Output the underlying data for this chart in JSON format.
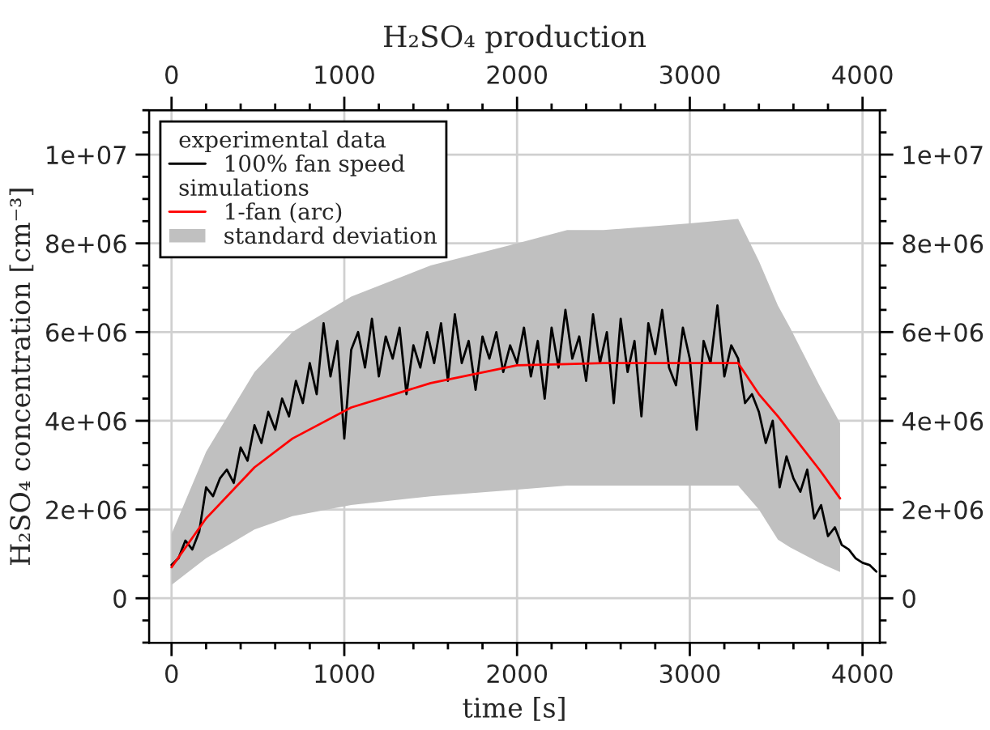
{
  "chart_data": {
    "type": "line",
    "title": "H₂SO₄ production",
    "xlabel": "time [s]",
    "ylabel": "H₂SO₄ concentration [cm⁻³]",
    "annotations": [
      "experimental data",
      "simulations",
      "standard deviation"
    ],
    "series": [
      {
        "name": "100% fan speed",
        "color": "#000000",
        "x": [
          0,
          40,
          80,
          120,
          160,
          200,
          240,
          280,
          320,
          360,
          400,
          440,
          480,
          520,
          560,
          600,
          640,
          680,
          720,
          760,
          800,
          840,
          880,
          920,
          960,
          1000,
          1040,
          1080,
          1120,
          1160,
          1200,
          1240,
          1280,
          1320,
          1360,
          1400,
          1440,
          1480,
          1520,
          1560,
          1600,
          1640,
          1680,
          1720,
          1760,
          1800,
          1840,
          1880,
          1920,
          1960,
          2000,
          2040,
          2080,
          2120,
          2160,
          2200,
          2240,
          2280,
          2320,
          2360,
          2400,
          2440,
          2480,
          2520,
          2560,
          2600,
          2640,
          2680,
          2720,
          2760,
          2800,
          2840,
          2880,
          2920,
          2960,
          3000,
          3040,
          3080,
          3120,
          3160,
          3200,
          3240,
          3280,
          3320,
          3360,
          3400,
          3440,
          3480,
          3520,
          3560,
          3600,
          3640,
          3680,
          3720,
          3760,
          3800,
          3840,
          3880,
          3920,
          3960,
          4000,
          4040,
          4080
        ],
        "values": [
          750000,
          900000,
          1300000,
          1100000,
          1500000,
          2500000,
          2300000,
          2700000,
          2900000,
          2600000,
          3400000,
          3100000,
          3900000,
          3500000,
          4200000,
          3800000,
          4500000,
          4100000,
          4900000,
          4400000,
          5300000,
          4600000,
          6200000,
          5000000,
          5800000,
          3600000,
          5600000,
          6000000,
          5200000,
          6300000,
          5000000,
          5900000,
          5400000,
          6100000,
          4600000,
          5700000,
          5200000,
          6000000,
          5300000,
          6200000,
          4900000,
          6400000,
          5300000,
          5800000,
          4700000,
          5900000,
          5400000,
          6000000,
          5100000,
          5700000,
          5300000,
          6100000,
          5000000,
          5800000,
          4500000,
          6100000,
          5200000,
          6500000,
          5400000,
          5900000,
          4900000,
          6400000,
          5300000,
          6000000,
          4400000,
          6300000,
          5100000,
          5800000,
          4100000,
          6200000,
          5500000,
          6500000,
          5200000,
          4800000,
          6100000,
          5400000,
          3800000,
          5800000,
          5300000,
          6600000,
          5000000,
          5700000,
          5400000,
          4400000,
          4600000,
          4200000,
          3500000,
          4000000,
          2500000,
          3200000,
          2700000,
          2400000,
          2900000,
          1800000,
          2100000,
          1400000,
          1600000,
          1200000,
          1100000,
          900000,
          800000,
          750000,
          600000
        ]
      },
      {
        "name": "1-fan (arc)",
        "color": "#ff0000",
        "x": [
          0,
          200,
          480,
          700,
          1040,
          1500,
          2000,
          2290,
          2500,
          3000,
          3280,
          3400,
          3510,
          3580,
          3750,
          3870
        ],
        "values": [
          700000,
          1800000,
          2950000,
          3600000,
          4300000,
          4850000,
          5250000,
          5280000,
          5300000,
          5300000,
          5300000,
          4600000,
          4100000,
          3750000,
          2900000,
          2250000
        ],
        "lower": [
          300000,
          900000,
          1550000,
          1850000,
          2100000,
          2300000,
          2450000,
          2540000,
          2540000,
          2540000,
          2540000,
          2000000,
          1320000,
          1150000,
          800000,
          590000
        ],
        "upper": [
          1450000,
          3300000,
          5100000,
          6000000,
          6800000,
          7500000,
          8000000,
          8300000,
          8300000,
          8450000,
          8550000,
          7600000,
          6600000,
          6100000,
          4800000,
          3950000
        ]
      }
    ],
    "xlim": [
      -130,
      4100
    ],
    "xticks": [
      0,
      1000,
      2000,
      3000,
      4000
    ],
    "x2lim": [
      -130,
      4100
    ],
    "x2ticks": [
      0,
      1000,
      2000,
      3000,
      4000
    ],
    "ylim": [
      -1000000,
      11000000
    ],
    "yticks": [
      0,
      {
        "value": 2000000,
        "label": "2e+06"
      },
      {
        "value": 4000000,
        "label": "4e+06"
      },
      {
        "value": 6000000,
        "label": "6e+06"
      },
      {
        "value": 8000000,
        "label": "8e+06"
      },
      {
        "value": 10000000,
        "label": "1e+07"
      }
    ],
    "y2lim": [
      -1000000,
      11000000
    ],
    "y2ticks": [
      0,
      {
        "value": 2000000,
        "label": "2e+06"
      },
      {
        "value": 4000000,
        "label": "4e+06"
      },
      {
        "value": 6000000,
        "label": "6e+06"
      },
      {
        "value": 8000000,
        "label": "8e+06"
      },
      {
        "value": 10000000,
        "label": "1e+07"
      }
    ],
    "grid": true,
    "legend": "top left",
    "line_style": "solid",
    "marker": "none"
  }
}
